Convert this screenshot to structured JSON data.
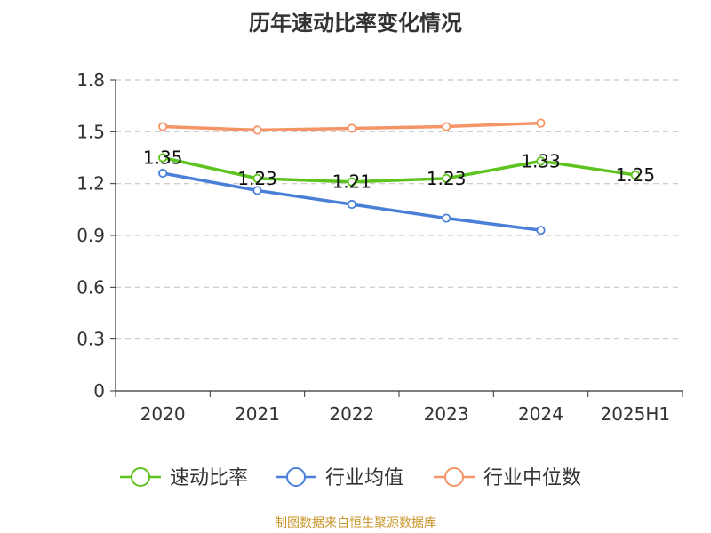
{
  "chart_data": {
    "type": "line",
    "title": "历年速动比率变化情况",
    "categories": [
      "2020",
      "2021",
      "2022",
      "2023",
      "2024",
      "2025H1"
    ],
    "ylim": [
      0,
      1.8
    ],
    "yticks": [
      "0",
      "0.3",
      "0.6",
      "0.9",
      "1.2",
      "1.5",
      "1.8"
    ],
    "grid": true,
    "legend_position": "bottom",
    "series": [
      {
        "name": "速动比率",
        "color": "#5cc31f",
        "values": [
          1.35,
          1.23,
          1.21,
          1.23,
          1.33,
          1.25
        ],
        "labels": [
          "1.35",
          "1.23",
          "1.21",
          "1.23",
          "1.33",
          "1.25"
        ]
      },
      {
        "name": "行业均值",
        "color": "#4a7fd8",
        "values": [
          1.26,
          1.16,
          1.08,
          1.0,
          0.93,
          null
        ]
      },
      {
        "name": "行业中位数",
        "color": "#f59466",
        "values": [
          1.53,
          1.51,
          1.52,
          1.53,
          1.55,
          null
        ]
      }
    ]
  },
  "source": "制图数据来自恒生聚源数据库"
}
